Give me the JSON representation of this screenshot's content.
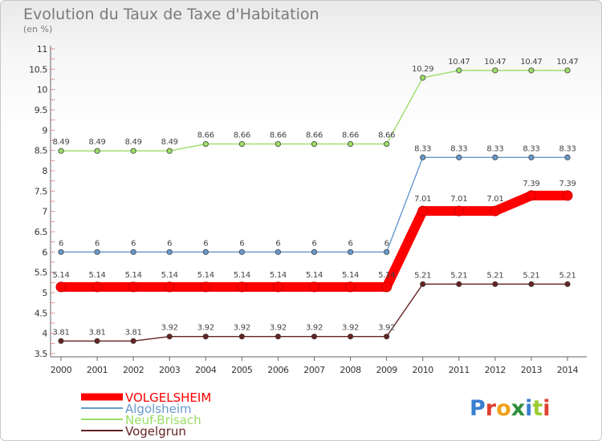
{
  "header": {
    "title": "Evolution du Taux de Taxe d'Habitation",
    "subtitle": "(en %)"
  },
  "logo": {
    "text": "Proxiti"
  },
  "chart_data": {
    "type": "line",
    "title": "Evolution du Taux de Taxe d'Habitation",
    "subtitle": "(en %)",
    "xlabel": "",
    "ylabel": "",
    "x": [
      2000,
      2001,
      2002,
      2003,
      2004,
      2005,
      2006,
      2007,
      2008,
      2009,
      2010,
      2011,
      2012,
      2013,
      2014
    ],
    "ylim": [
      3.5,
      11
    ],
    "yticks": [
      "3.5",
      "4",
      "4.5",
      "5",
      "5.5",
      "6",
      "6.5",
      "7",
      "7.5",
      "8",
      "8.5",
      "9",
      "9.5",
      "10",
      "10.5",
      "11"
    ],
    "legend_position": "bottom-left",
    "grid": false,
    "series": [
      {
        "name": "VOLGELSHEIM",
        "color": "#ff0000",
        "values": [
          5.14,
          5.14,
          5.14,
          5.14,
          5.14,
          5.14,
          5.14,
          5.14,
          5.14,
          5.14,
          7.01,
          7.01,
          7.01,
          7.39,
          7.39
        ]
      },
      {
        "name": "Algolsheim",
        "color": "#6699cc",
        "values": [
          6,
          6,
          6,
          6,
          6,
          6,
          6,
          6,
          6,
          6,
          8.33,
          8.33,
          8.33,
          8.33,
          8.33
        ]
      },
      {
        "name": "Neuf-Brisach",
        "color": "#99dd66",
        "values": [
          8.49,
          8.49,
          8.49,
          8.49,
          8.66,
          8.66,
          8.66,
          8.66,
          8.66,
          8.66,
          10.29,
          10.47,
          10.47,
          10.47,
          10.47
        ]
      },
      {
        "name": "Vogelgrun",
        "color": "#662222",
        "values": [
          3.81,
          3.81,
          3.81,
          3.92,
          3.92,
          3.92,
          3.92,
          3.92,
          3.92,
          3.92,
          5.21,
          5.21,
          5.21,
          5.21,
          5.21
        ]
      }
    ]
  }
}
